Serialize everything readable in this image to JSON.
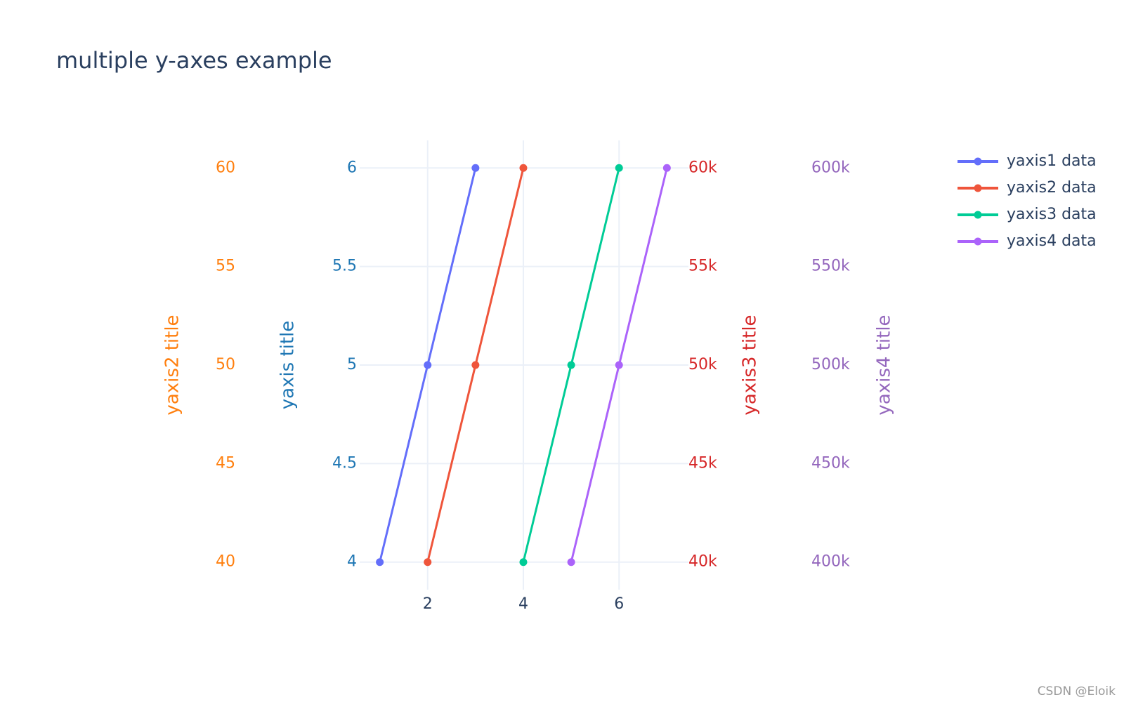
{
  "chart_data": {
    "type": "line",
    "title": "multiple y-axes example",
    "xlim": [
      0.58,
      7.45
    ],
    "xticks": [
      2,
      4,
      6
    ],
    "grid": true,
    "ylabel": "yaxis title",
    "ycolor": "#1f77b4",
    "ylim": [
      3.86,
      6.14
    ],
    "yticks": [
      4,
      4.5,
      5,
      5.5,
      6
    ],
    "y2label": "yaxis2 title",
    "y2color": "#ff7f0e",
    "y2lim": [
      38.6,
      61.4
    ],
    "y2ticks": [
      40,
      45,
      50,
      55,
      60
    ],
    "y3label": "yaxis3 title",
    "y3color": "#d62728",
    "y3lim": [
      38600,
      61400
    ],
    "y3ticks": [
      {
        "value": 40000,
        "label": "40k"
      },
      {
        "value": 45000,
        "label": "45k"
      },
      {
        "value": 50000,
        "label": "50k"
      },
      {
        "value": 55000,
        "label": "55k"
      },
      {
        "value": 60000,
        "label": "60k"
      }
    ],
    "y4label": "yaxis4 title",
    "y4color": "#9467bd",
    "y4lim": [
      386000,
      614000
    ],
    "y4ticks": [
      {
        "value": 400000,
        "label": "400k"
      },
      {
        "value": 450000,
        "label": "450k"
      },
      {
        "value": 500000,
        "label": "500k"
      },
      {
        "value": 550000,
        "label": "550k"
      },
      {
        "value": 600000,
        "label": "600k"
      }
    ],
    "series": [
      {
        "name": "yaxis1 data",
        "color": "#636efa",
        "axis": "y",
        "x": [
          1,
          2,
          3
        ],
        "values": [
          4,
          5,
          6
        ]
      },
      {
        "name": "yaxis2 data",
        "color": "#EF553B",
        "axis": "y2",
        "x": [
          2,
          3,
          4
        ],
        "values": [
          40,
          50,
          60
        ]
      },
      {
        "name": "yaxis3 data",
        "color": "#00cc96",
        "axis": "y3",
        "x": [
          4,
          5,
          6
        ],
        "values": [
          40000,
          50000,
          60000
        ]
      },
      {
        "name": "yaxis4 data",
        "color": "#ab63fa",
        "axis": "y4",
        "x": [
          5,
          6,
          7
        ],
        "values": [
          400000,
          500000,
          600000
        ]
      }
    ],
    "watermark": "CSDN @Eloik"
  }
}
